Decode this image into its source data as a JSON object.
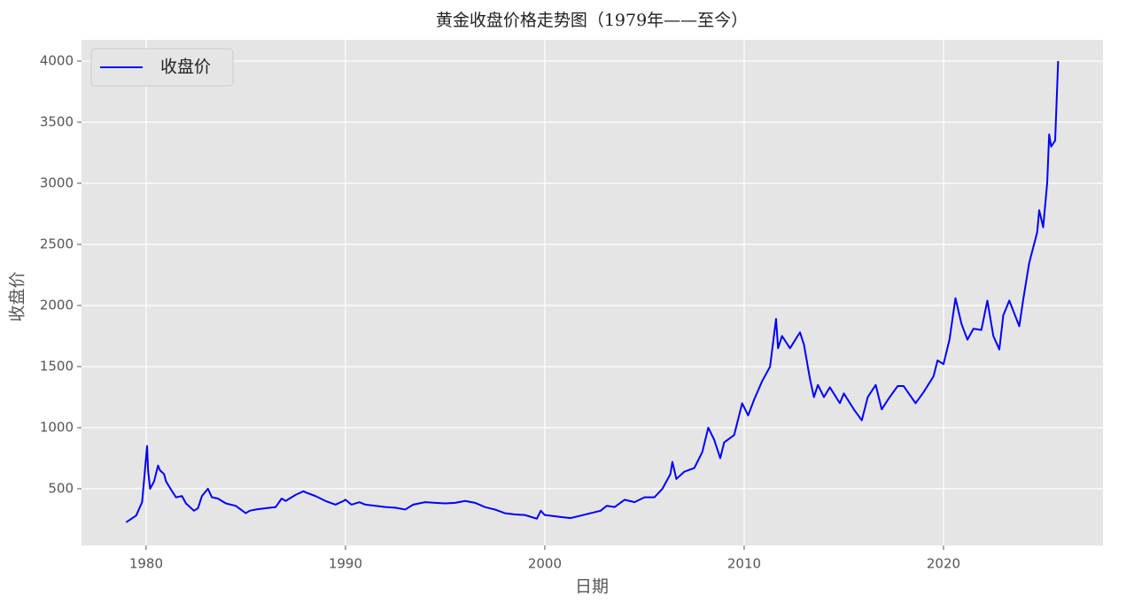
{
  "chart_data": {
    "type": "line",
    "title": "黄金收盘价格走势图（1979年——至今）",
    "x_label": "日期",
    "y_label": "收盘价",
    "legend": "upper left",
    "grid": true,
    "xlim": [
      1976.76,
      2028.0
    ],
    "ylim": [
      36,
      4174
    ],
    "xticks": [
      1980,
      1990,
      2000,
      2010,
      2020
    ],
    "yticks": [
      500,
      1000,
      1500,
      2000,
      2500,
      3000,
      3500,
      4000
    ],
    "x": [
      1979.0,
      1979.5,
      1979.8,
      1980.05,
      1980.1,
      1980.2,
      1980.4,
      1980.6,
      1980.7,
      1980.9,
      1981.0,
      1981.3,
      1981.5,
      1981.8,
      1982.0,
      1982.4,
      1982.6,
      1982.8,
      1983.0,
      1983.1,
      1983.3,
      1983.6,
      1984.0,
      1984.5,
      1985.0,
      1985.2,
      1985.5,
      1986.0,
      1986.5,
      1986.8,
      1987.0,
      1987.5,
      1987.9,
      1988.0,
      1988.5,
      1989.0,
      1989.5,
      1989.9,
      1990.0,
      1990.3,
      1990.7,
      1991.0,
      1991.5,
      1992.0,
      1992.5,
      1993.0,
      1993.4,
      1993.7,
      1994.0,
      1994.5,
      1995.0,
      1995.5,
      1996.0,
      1996.5,
      1997.0,
      1997.5,
      1998.0,
      1998.5,
      1999.0,
      1999.6,
      1999.8,
      2000.0,
      2000.5,
      2001.0,
      2001.3,
      2001.8,
      2002.3,
      2002.8,
      2003.1,
      2003.5,
      2004.0,
      2004.5,
      2005.0,
      2005.5,
      2005.9,
      2006.3,
      2006.4,
      2006.6,
      2007.0,
      2007.5,
      2007.9,
      2008.2,
      2008.5,
      2008.8,
      2009.0,
      2009.5,
      2009.9,
      2010.2,
      2010.5,
      2010.9,
      2011.3,
      2011.6,
      2011.7,
      2011.9,
      2012.3,
      2012.8,
      2013.0,
      2013.3,
      2013.5,
      2013.7,
      2014.0,
      2014.3,
      2014.8,
      2015.0,
      2015.5,
      2015.9,
      2016.2,
      2016.6,
      2016.9,
      2017.3,
      2017.7,
      2018.0,
      2018.6,
      2019.0,
      2019.5,
      2019.7,
      2020.0,
      2020.3,
      2020.6,
      2020.9,
      2021.2,
      2021.5,
      2021.9,
      2022.2,
      2022.5,
      2022.8,
      2023.0,
      2023.3,
      2023.8,
      2024.0,
      2024.3,
      2024.7,
      2024.8,
      2025.0,
      2025.2,
      2025.3,
      2025.4,
      2025.6,
      2025.75
    ],
    "series": [
      {
        "name": "收盘价",
        "color": "#0000ff",
        "values": [
          226,
          280,
          390,
          850,
          650,
          500,
          560,
          690,
          650,
          620,
          560,
          480,
          430,
          440,
          380,
          320,
          340,
          440,
          480,
          500,
          430,
          420,
          380,
          360,
          300,
          320,
          330,
          340,
          350,
          420,
          400,
          450,
          480,
          470,
          440,
          400,
          370,
          400,
          410,
          370,
          390,
          370,
          360,
          350,
          345,
          330,
          370,
          380,
          390,
          385,
          380,
          385,
          400,
          385,
          350,
          330,
          300,
          290,
          285,
          255,
          320,
          285,
          275,
          265,
          260,
          280,
          300,
          320,
          360,
          350,
          410,
          390,
          430,
          430,
          500,
          620,
          720,
          580,
          640,
          670,
          800,
          1000,
          900,
          750,
          880,
          940,
          1200,
          1100,
          1230,
          1380,
          1500,
          1890,
          1650,
          1750,
          1650,
          1780,
          1680,
          1400,
          1250,
          1350,
          1250,
          1330,
          1200,
          1280,
          1150,
          1060,
          1250,
          1350,
          1150,
          1250,
          1340,
          1340,
          1200,
          1290,
          1420,
          1550,
          1520,
          1720,
          2060,
          1850,
          1720,
          1810,
          1800,
          2040,
          1750,
          1640,
          1920,
          2040,
          1830,
          2050,
          2350,
          2600,
          2780,
          2640,
          3000,
          3400,
          3300,
          3350,
          4000
        ]
      }
    ]
  }
}
